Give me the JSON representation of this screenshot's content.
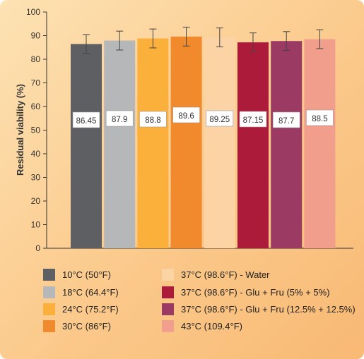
{
  "chart_data": {
    "type": "bar",
    "ylabel": "Residual viability (%)",
    "xlabel": "",
    "ylim": [
      0,
      100
    ],
    "yticks": [
      0,
      10,
      20,
      30,
      40,
      50,
      60,
      70,
      80,
      90,
      100
    ],
    "grid": false,
    "legend_position": "bottom",
    "categories": [
      "10°C (50°F)",
      "18°C (64.4°F)",
      "24°C (75.2°F)",
      "30°C (86°F)",
      "37°C (98.6°F) - Water",
      "37°C (98.6°F) - Glu + Fru (5% + 5%)",
      "37°C (98.6°F) - Glu + Fru (12.5% + 12.5%)",
      "43°C (109.4°F)"
    ],
    "values": [
      86.45,
      87.9,
      88.8,
      89.6,
      89.25,
      87.15,
      87.7,
      88.5
    ],
    "value_labels": [
      "86.45",
      "87.9",
      "88.8",
      "89.6",
      "89.25",
      "87.15",
      "87.7",
      "88.5"
    ],
    "error": [
      4.0,
      4.0,
      4.0,
      4.0,
      4.0,
      4.0,
      4.0,
      4.0
    ],
    "colors": [
      "#5e5f62",
      "#b6b7b9",
      "#fbb03b",
      "#f08a2d",
      "#fcd3a5",
      "#ad1b3b",
      "#9b3b63",
      "#f29e8c"
    ]
  }
}
